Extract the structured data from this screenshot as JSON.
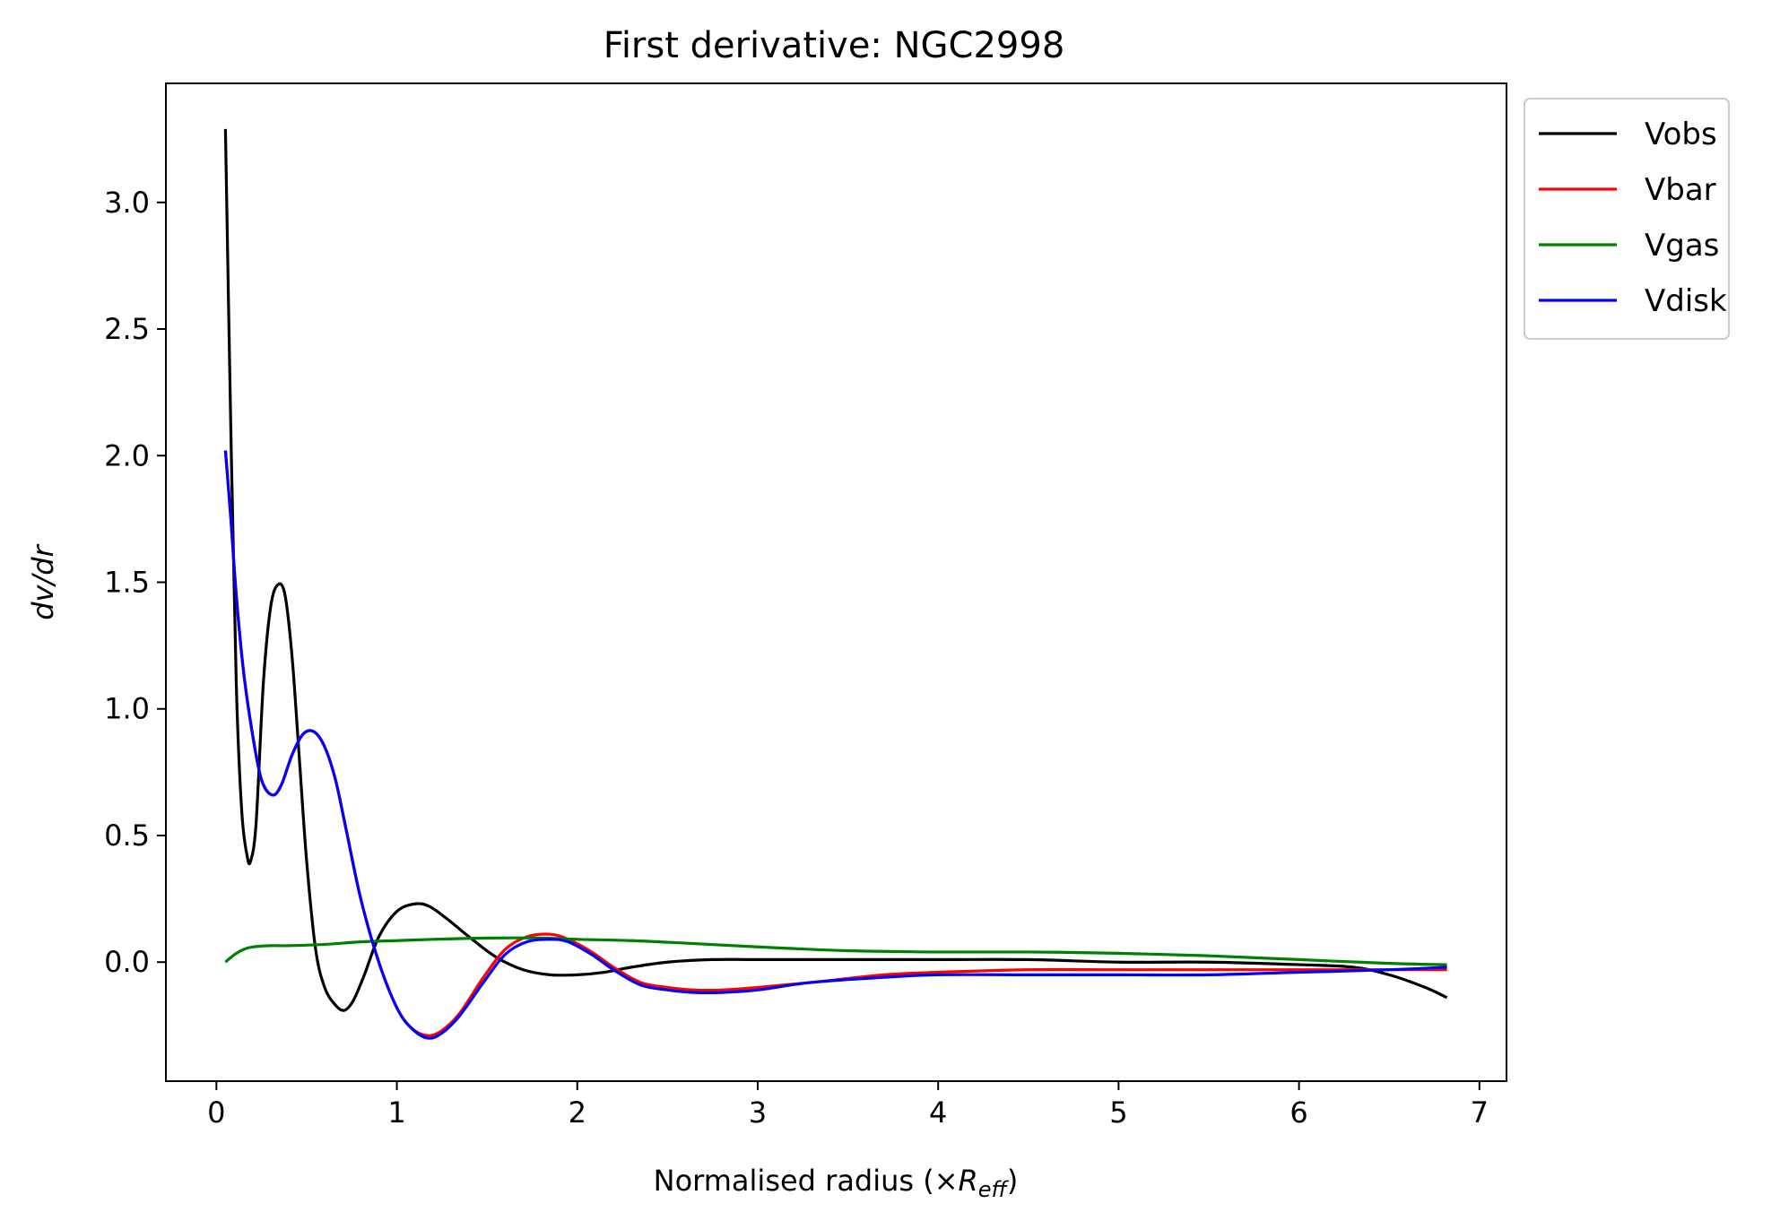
{
  "chart_data": {
    "type": "line",
    "title": "First derivative: NGC2998",
    "xlabel_prefix": "Normalised radius (×",
    "xlabel_var": "R",
    "xlabel_sub": "eff",
    "xlabel_suffix": ")",
    "ylabel": "dv/dr",
    "xlim": [
      -0.28,
      7.15
    ],
    "ylim": [
      -0.47,
      3.47
    ],
    "xticks": [
      0,
      1,
      2,
      3,
      4,
      5,
      6,
      7
    ],
    "xtick_labels": [
      "0",
      "1",
      "2",
      "3",
      "4",
      "5",
      "6",
      "7"
    ],
    "yticks": [
      0.0,
      0.5,
      1.0,
      1.5,
      2.0,
      2.5,
      3.0
    ],
    "ytick_labels": [
      "0.0",
      "0.5",
      "1.0",
      "1.5",
      "2.0",
      "2.5",
      "3.0"
    ],
    "grid": false,
    "legend_position": "outside-top-right",
    "series": [
      {
        "name": "Vobs",
        "color": "#000000",
        "x": [
          0.05,
          0.08,
          0.11,
          0.14,
          0.17,
          0.19,
          0.22,
          0.26,
          0.3,
          0.34,
          0.38,
          0.42,
          0.46,
          0.5,
          0.55,
          0.6,
          0.66,
          0.71,
          0.76,
          0.82,
          0.9,
          1.0,
          1.1,
          1.18,
          1.28,
          1.4,
          1.55,
          1.7,
          1.85,
          2.0,
          2.15,
          2.3,
          2.5,
          2.75,
          3.0,
          3.5,
          4.0,
          4.5,
          5.0,
          5.5,
          6.0,
          6.3,
          6.5,
          6.7,
          6.82
        ],
        "y": [
          3.29,
          2.1,
          1.1,
          0.6,
          0.42,
          0.4,
          0.55,
          1.1,
          1.4,
          1.49,
          1.45,
          1.2,
          0.8,
          0.4,
          0.05,
          -0.1,
          -0.17,
          -0.19,
          -0.15,
          -0.05,
          0.1,
          0.2,
          0.23,
          0.22,
          0.17,
          0.1,
          0.02,
          -0.03,
          -0.05,
          -0.05,
          -0.04,
          -0.02,
          0.0,
          0.01,
          0.01,
          0.01,
          0.01,
          0.01,
          0.0,
          0.0,
          -0.01,
          -0.02,
          -0.05,
          -0.1,
          -0.14
        ]
      },
      {
        "name": "Vbar",
        "color": "#ff0000",
        "x": [
          0.05,
          0.08,
          0.11,
          0.15,
          0.2,
          0.25,
          0.31,
          0.36,
          0.42,
          0.48,
          0.54,
          0.6,
          0.66,
          0.72,
          0.8,
          0.9,
          1.0,
          1.08,
          1.17,
          1.25,
          1.35,
          1.48,
          1.6,
          1.72,
          1.85,
          1.95,
          2.08,
          2.2,
          2.35,
          2.5,
          2.65,
          2.8,
          3.0,
          3.3,
          3.7,
          4.0,
          4.5,
          5.0,
          5.5,
          6.0,
          6.5,
          6.82
        ],
        "y": [
          2.02,
          1.75,
          1.45,
          1.15,
          0.9,
          0.72,
          0.66,
          0.7,
          0.82,
          0.9,
          0.91,
          0.85,
          0.72,
          0.52,
          0.25,
          0.0,
          -0.18,
          -0.26,
          -0.29,
          -0.27,
          -0.2,
          -0.06,
          0.05,
          0.1,
          0.11,
          0.09,
          0.04,
          -0.02,
          -0.08,
          -0.1,
          -0.11,
          -0.11,
          -0.1,
          -0.08,
          -0.05,
          -0.04,
          -0.03,
          -0.03,
          -0.03,
          -0.03,
          -0.03,
          -0.03
        ]
      },
      {
        "name": "Vgas",
        "color": "#008000",
        "x": [
          0.05,
          0.1,
          0.15,
          0.2,
          0.3,
          0.4,
          0.6,
          0.8,
          1.0,
          1.2,
          1.5,
          1.8,
          2.0,
          2.3,
          2.6,
          3.0,
          3.5,
          4.0,
          4.5,
          5.0,
          5.5,
          6.0,
          6.5,
          6.82
        ],
        "y": [
          0.0,
          0.03,
          0.05,
          0.06,
          0.065,
          0.065,
          0.07,
          0.08,
          0.085,
          0.09,
          0.095,
          0.095,
          0.09,
          0.085,
          0.075,
          0.06,
          0.045,
          0.04,
          0.04,
          0.035,
          0.025,
          0.01,
          -0.005,
          -0.01
        ]
      },
      {
        "name": "Vdisk",
        "color": "#0000ff",
        "x": [
          0.05,
          0.08,
          0.11,
          0.15,
          0.2,
          0.25,
          0.31,
          0.36,
          0.42,
          0.48,
          0.54,
          0.6,
          0.66,
          0.72,
          0.8,
          0.9,
          1.0,
          1.08,
          1.17,
          1.25,
          1.35,
          1.48,
          1.6,
          1.72,
          1.85,
          1.95,
          2.08,
          2.2,
          2.35,
          2.5,
          2.65,
          2.8,
          3.0,
          3.3,
          3.7,
          4.0,
          4.5,
          5.0,
          5.5,
          6.0,
          6.5,
          6.82
        ],
        "y": [
          2.02,
          1.75,
          1.45,
          1.15,
          0.9,
          0.72,
          0.66,
          0.7,
          0.82,
          0.9,
          0.91,
          0.85,
          0.72,
          0.52,
          0.25,
          0.0,
          -0.18,
          -0.26,
          -0.3,
          -0.28,
          -0.21,
          -0.08,
          0.03,
          0.08,
          0.09,
          0.08,
          0.03,
          -0.03,
          -0.09,
          -0.11,
          -0.12,
          -0.12,
          -0.11,
          -0.08,
          -0.06,
          -0.05,
          -0.05,
          -0.05,
          -0.05,
          -0.04,
          -0.03,
          -0.02
        ]
      }
    ]
  }
}
